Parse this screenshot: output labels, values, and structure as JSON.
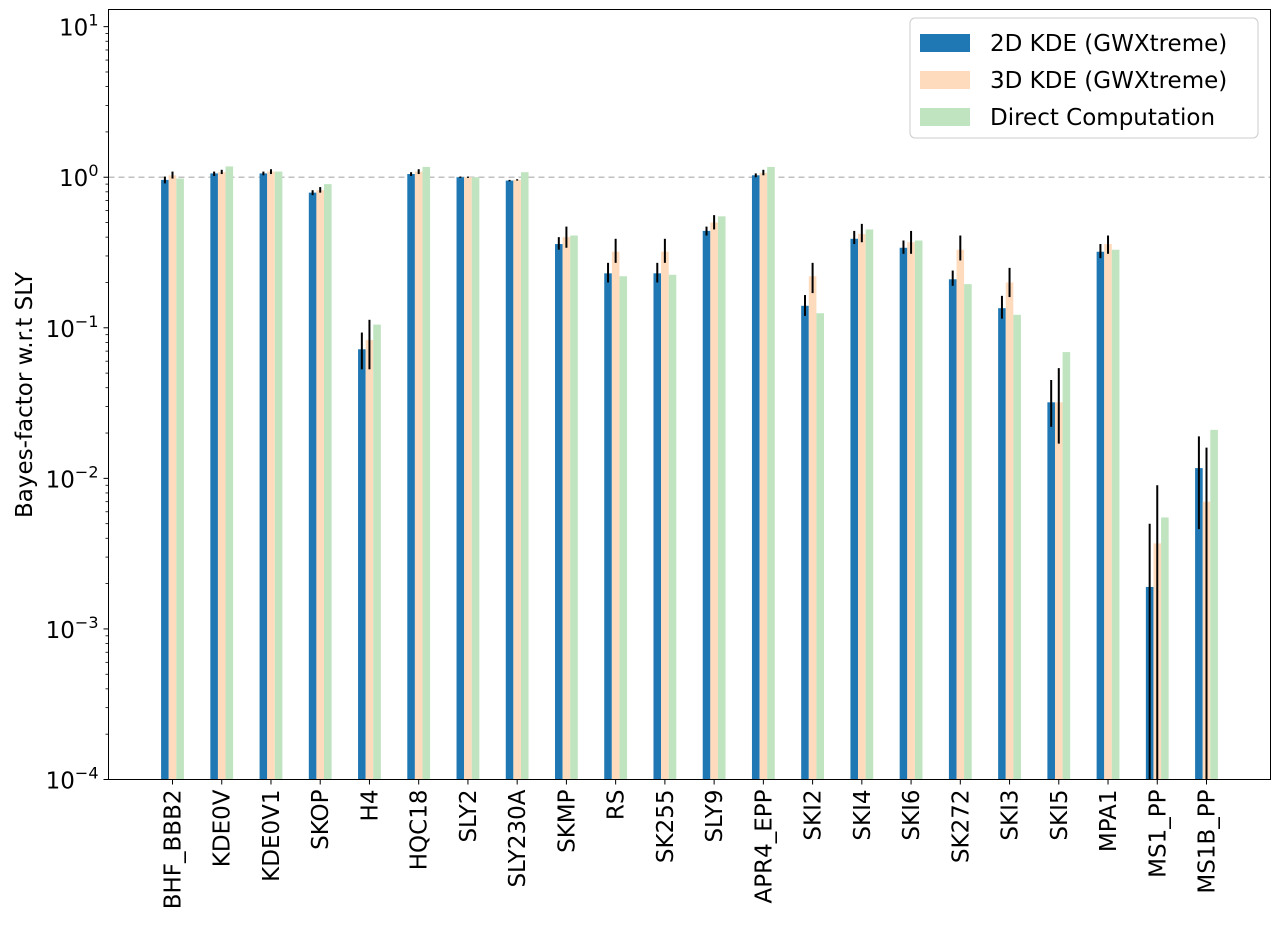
{
  "chart_data": {
    "type": "bar",
    "title": "",
    "xlabel": "",
    "ylabel": "Bayes-factor w.r.t SLY",
    "yscale": "log",
    "ylim": [
      0.0001,
      13
    ],
    "yticks": [
      {
        "value": 0.0001,
        "base": "10",
        "exp": "−4"
      },
      {
        "value": 0.001,
        "base": "10",
        "exp": "−3"
      },
      {
        "value": 0.01,
        "base": "10",
        "exp": "−2"
      },
      {
        "value": 0.1,
        "base": "10",
        "exp": "−1"
      },
      {
        "value": 1,
        "base": "10",
        "exp": "0"
      },
      {
        "value": 10,
        "base": "10",
        "exp": "1"
      }
    ],
    "reference_line": {
      "value": 1,
      "style": "dashed",
      "color": "#c0c0c0"
    },
    "legend_position": "top-right",
    "categories": [
      "BHF_BBB2",
      "KDE0V",
      "KDE0V1",
      "SKOP",
      "H4",
      "HQC18",
      "SLY2",
      "SLY230A",
      "SKMP",
      "RS",
      "SK255",
      "SLY9",
      "APR4_EPP",
      "SKI2",
      "SKI4",
      "SKI6",
      "SK272",
      "SKI3",
      "SKI5",
      "MPA1",
      "MS1_PP",
      "MS1B_PP"
    ],
    "series": [
      {
        "name": "2D KDE (GWXtreme)",
        "color": "#1f77b4",
        "values": [
          0.96,
          1.06,
          1.06,
          0.79,
          0.072,
          1.05,
          1.0,
          0.95,
          0.36,
          0.23,
          0.23,
          0.44,
          1.03,
          0.14,
          0.39,
          0.34,
          0.21,
          0.135,
          0.032,
          0.32,
          0.0019,
          0.0117
        ],
        "err_low": [
          0.91,
          1.02,
          1.03,
          0.76,
          0.053,
          1.02,
          0.99,
          0.94,
          0.33,
          0.2,
          0.2,
          0.41,
          1.0,
          0.12,
          0.36,
          0.31,
          0.19,
          0.115,
          0.022,
          0.29,
          0.0001,
          0.0046
        ],
        "err_high": [
          1.01,
          1.09,
          1.09,
          0.82,
          0.093,
          1.08,
          1.01,
          0.96,
          0.4,
          0.27,
          0.27,
          0.47,
          1.06,
          0.165,
          0.44,
          0.38,
          0.24,
          0.163,
          0.045,
          0.36,
          0.005,
          0.019
        ]
      },
      {
        "name": "3D KDE (GWXtreme)",
        "color": "#ffdbbd",
        "values": [
          1.03,
          1.08,
          1.09,
          0.82,
          0.083,
          1.09,
          1.0,
          0.96,
          0.4,
          0.32,
          0.32,
          0.5,
          1.07,
          0.22,
          0.42,
          0.37,
          0.33,
          0.2,
          0.032,
          0.36,
          0.0037,
          0.007
        ],
        "err_low": [
          0.98,
          1.05,
          1.05,
          0.79,
          0.053,
          1.05,
          0.99,
          0.95,
          0.34,
          0.27,
          0.27,
          0.45,
          1.03,
          0.17,
          0.37,
          0.31,
          0.28,
          0.16,
          0.017,
          0.31,
          0.0001,
          0.0001
        ],
        "err_high": [
          1.09,
          1.12,
          1.13,
          0.86,
          0.113,
          1.13,
          1.01,
          0.97,
          0.47,
          0.39,
          0.39,
          0.56,
          1.12,
          0.27,
          0.49,
          0.44,
          0.41,
          0.25,
          0.054,
          0.41,
          0.009,
          0.016
        ]
      },
      {
        "name": "Direct Computation",
        "color": "#c0e4c0",
        "values": [
          0.98,
          1.18,
          1.09,
          0.9,
          0.105,
          1.17,
          1.0,
          1.08,
          0.41,
          0.22,
          0.225,
          0.55,
          1.17,
          0.125,
          0.45,
          0.38,
          0.195,
          0.122,
          0.069,
          0.33,
          0.0055,
          0.021
        ]
      }
    ]
  }
}
